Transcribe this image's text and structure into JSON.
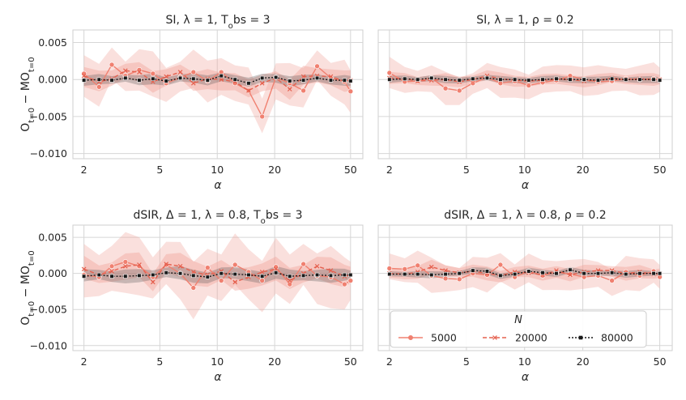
{
  "figure": {
    "ylabel": "O_{t=0} − MO_{t=0}"
  },
  "colors": {
    "n5000": "#f08070",
    "n20000": "#e5604e",
    "n80000": "#1a1a1a",
    "band": "#f2a79d",
    "band_dark": "#555555",
    "grid": "#d6d6d6"
  },
  "legend": {
    "title": "N",
    "entries": [
      {
        "label": "5000",
        "style": "solid-circle"
      },
      {
        "label": "20000",
        "style": "dashed-x"
      },
      {
        "label": "80000",
        "style": "dotted-square"
      }
    ]
  },
  "chart_data": [
    {
      "type": "line",
      "title": "SI, λ = 1, T_obs = 3",
      "xlabel": "α",
      "ylabel": "O_{t=0} − MO_{t=0}",
      "xscale": "log",
      "xlim": [
        1.75,
        58
      ],
      "ylim": [
        -0.0107,
        0.0067
      ],
      "xticks": [
        2,
        5,
        10,
        20,
        50
      ],
      "yticks": [
        0.005,
        0.0,
        -0.005,
        -0.01
      ],
      "ytick_labels": [
        "0.005",
        "0.000",
        "−0.005",
        "−0.010"
      ],
      "grid": true,
      "x": [
        2,
        2.4,
        2.8,
        3.3,
        3.9,
        4.6,
        5.4,
        6.4,
        7.5,
        8.9,
        10.5,
        12.4,
        14.6,
        17.2,
        20.3,
        24,
        28.3,
        33.4,
        39.4,
        46.5,
        50
      ],
      "series": [
        {
          "name": "5000",
          "values": [
            0.0008,
            -0.001,
            0.002,
            0.0005,
            0.0013,
            0.0008,
            -0.0005,
            0.0003,
            0.001,
            -0.0002,
            0.001,
            -0.0005,
            -0.0015,
            -0.005,
            0.0003,
            -0.0005,
            -0.0015,
            0.0018,
            0.0002,
            -0.0003,
            -0.0016
          ],
          "band": [
            0.0025,
            0.0025
          ]
        },
        {
          "name": "20000",
          "values": [
            0.0005,
            -0.0003,
            0.0001,
            0.0012,
            0.001,
            -0.0003,
            0.0004,
            0.001,
            -0.0005,
            0.0001,
            0.0,
            -0.0003,
            -0.0015,
            -0.0005,
            0.0002,
            -0.0013,
            0.0004,
            0.0005,
            0.0004,
            -0.0002,
            -0.0001
          ],
          "band": [
            0.0012,
            0.0012
          ]
        },
        {
          "name": "80000",
          "values": [
            -0.0001,
            0.0,
            -0.0001,
            0.0002,
            -0.0001,
            0.0001,
            -0.0002,
            0.0002,
            0.0001,
            -0.0001,
            0.0005,
            0.0,
            -0.0005,
            0.0002,
            0.0003,
            -0.0002,
            -0.0001,
            0.0002,
            -0.0001,
            -0.0001,
            -0.0002
          ],
          "band": [
            0.0006,
            0.0006
          ]
        }
      ]
    },
    {
      "type": "line",
      "title": "SI, λ = 1, ρ = 0.2",
      "xlabel": "α",
      "ylabel": "",
      "xscale": "log",
      "xlim": [
        1.75,
        58
      ],
      "ylim": [
        -0.0107,
        0.0067
      ],
      "xticks": [
        2,
        5,
        10,
        20,
        50
      ],
      "yticks": [
        0.005,
        0.0,
        -0.005,
        -0.01
      ],
      "ytick_labels": [
        "",
        "",
        "",
        ""
      ],
      "grid": true,
      "x": [
        2,
        2.4,
        2.8,
        3.3,
        3.9,
        4.6,
        5.4,
        6.4,
        7.5,
        8.9,
        10.5,
        12.4,
        14.6,
        17.2,
        20.3,
        24,
        28.3,
        33.4,
        39.4,
        46.5,
        50
      ],
      "series": [
        {
          "name": "5000",
          "values": [
            0.0009,
            -0.0003,
            -0.0002,
            0.0002,
            -0.0012,
            -0.0015,
            -0.0005,
            0.0003,
            -0.0005,
            -0.0002,
            -0.0008,
            -0.0004,
            -0.0001,
            0.0005,
            0.0,
            -0.0003,
            -0.0002,
            0.0001,
            0.0,
            0.0001,
            0.0
          ],
          "band": [
            0.0018,
            0.0018
          ]
        },
        {
          "name": "20000",
          "values": [
            0.0002,
            0.0001,
            -0.0002,
            -0.0001,
            0.0,
            -0.0003,
            0.0,
            0.0005,
            0.0001,
            -0.0001,
            -0.0002,
            -0.0001,
            0.0,
            0.0,
            -0.0002,
            -0.0001,
            0.0002,
            0.0,
            0.0001,
            0.0,
            0.0
          ],
          "band": [
            0.0007,
            0.0007
          ]
        },
        {
          "name": "80000",
          "values": [
            0.0,
            0.0001,
            0.0,
            0.0002,
            0.0,
            -0.0001,
            0.0001,
            0.0002,
            0.0,
            0.0,
            -0.0001,
            0.0,
            0.0001,
            0.0,
            0.0,
            -0.0001,
            0.0001,
            0.0,
            0.0,
            0.0,
            -0.0001
          ],
          "band": [
            0.0004,
            0.0004
          ]
        }
      ]
    },
    {
      "type": "line",
      "title": "dSIR, Δ = 1, λ = 0.8, T_obs = 3",
      "xlabel": "α",
      "ylabel": "O_{t=0} − MO_{t=0}",
      "xscale": "log",
      "xlim": [
        1.75,
        58
      ],
      "ylim": [
        -0.0107,
        0.0067
      ],
      "xticks": [
        2,
        5,
        10,
        20,
        50
      ],
      "yticks": [
        0.005,
        0.0,
        -0.005,
        -0.01
      ],
      "ytick_labels": [
        "0.005",
        "0.000",
        "−0.005",
        "−0.010"
      ],
      "grid": true,
      "x": [
        2,
        2.4,
        2.8,
        3.3,
        3.9,
        4.6,
        5.4,
        6.4,
        7.5,
        8.9,
        10.5,
        12.4,
        14.6,
        17.2,
        20.3,
        24,
        28.3,
        33.4,
        39.4,
        46.5,
        50
      ],
      "series": [
        {
          "name": "5000",
          "values": [
            -0.0002,
            -0.0005,
            0.001,
            0.0016,
            0.001,
            -0.0005,
            0.0012,
            0.0,
            -0.002,
            0.0008,
            -0.001,
            0.0012,
            0.0002,
            -0.001,
            0.0009,
            -0.0015,
            0.0013,
            -0.0003,
            -0.0005,
            -0.0015,
            -0.001
          ],
          "band": [
            0.0035,
            0.0035
          ]
        },
        {
          "name": "20000",
          "values": [
            0.0006,
            -0.0002,
            0.0003,
            0.001,
            0.0012,
            -0.0012,
            0.0013,
            0.001,
            0.0002,
            -0.0002,
            0.0003,
            -0.0012,
            -0.0005,
            0.0002,
            0.0006,
            -0.001,
            0.0,
            0.001,
            0.0004,
            -0.0004,
            -0.0002
          ],
          "band": [
            0.0015,
            0.0015
          ]
        },
        {
          "name": "80000",
          "values": [
            -0.0004,
            -0.0002,
            -0.0004,
            -0.0004,
            -0.0003,
            -0.0002,
            0.0001,
            0.0,
            -0.0003,
            -0.0005,
            0.0,
            -0.0001,
            -0.0002,
            -0.0004,
            0.0001,
            -0.0004,
            -0.0003,
            -0.0002,
            -0.0003,
            -0.0002,
            -0.0002
          ],
          "band": [
            0.0008,
            0.0008
          ]
        }
      ]
    },
    {
      "type": "line",
      "title": "dSIR, Δ = 1, λ = 0.8, ρ = 0.2",
      "xlabel": "α",
      "ylabel": "",
      "xscale": "log",
      "xlim": [
        1.75,
        58
      ],
      "ylim": [
        -0.0107,
        0.0067
      ],
      "xticks": [
        2,
        5,
        10,
        20,
        50
      ],
      "yticks": [
        0.005,
        0.0,
        -0.005,
        -0.01
      ],
      "ytick_labels": [
        "",
        "",
        "",
        ""
      ],
      "grid": true,
      "x": [
        2,
        2.4,
        2.8,
        3.3,
        3.9,
        4.6,
        5.4,
        6.4,
        7.5,
        8.9,
        10.5,
        12.4,
        14.6,
        17.2,
        20.3,
        24,
        28.3,
        33.4,
        39.4,
        46.5,
        50
      ],
      "series": [
        {
          "name": "5000",
          "values": [
            0.0007,
            0.0006,
            0.0011,
            -0.0003,
            -0.0007,
            -0.0008,
            0.0,
            -0.0002,
            0.0012,
            -0.0005,
            0.0003,
            -0.0003,
            0.0002,
            -0.0001,
            -0.0005,
            -0.0003,
            -0.001,
            0.0002,
            -0.0003,
            0.0003,
            -0.0005
          ],
          "band": [
            0.002,
            0.002
          ]
        },
        {
          "name": "20000",
          "values": [
            0.0,
            -0.0001,
            0.0002,
            0.0009,
            0.0004,
            0.0001,
            0.0003,
            0.0,
            -0.0003,
            0.0002,
            0.0001,
            -0.0002,
            0.0004,
            -0.0002,
            0.0002,
            0.0004,
            0.0004,
            0.0,
            0.0002,
            -0.0001,
            0.0
          ],
          "band": [
            0.0008,
            0.0008
          ]
        },
        {
          "name": "80000",
          "values": [
            -0.0001,
            -0.0001,
            -0.0001,
            -0.0002,
            -0.0001,
            0.0,
            0.0004,
            0.0003,
            -0.0003,
            -0.0001,
            0.0003,
            0.0001,
            0.0,
            0.0005,
            0.0,
            0.0,
            0.0001,
            -0.0001,
            0.0,
            0.0,
            0.0
          ],
          "band": [
            0.0004,
            0.0004
          ]
        }
      ]
    }
  ]
}
